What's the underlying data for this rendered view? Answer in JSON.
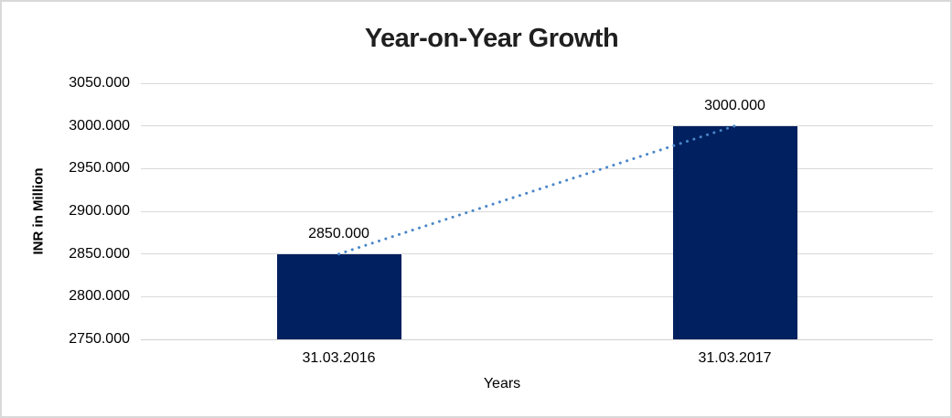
{
  "chart_data": {
    "type": "bar",
    "title": "Year-on-Year Growth",
    "categories": [
      "31.03.2016",
      "31.03.2017"
    ],
    "values": [
      2850,
      3000
    ],
    "value_labels": [
      "2850.000",
      "3000.000"
    ],
    "xlabel": "Years",
    "ylabel": "INR in Million",
    "ylim": [
      2750,
      3050
    ],
    "ytick_step": 50,
    "ytick_labels": [
      "2750.000",
      "2800.000",
      "2850.000",
      "2900.000",
      "2950.000",
      "3000.000",
      "3050.000"
    ],
    "grid": true,
    "legend": "none",
    "trendline": {
      "style": "dotted",
      "color": "#4a86c8",
      "from": {
        "category_index": 0,
        "value": 2850
      },
      "to": {
        "category_index": 1,
        "value": 3000
      }
    },
    "colors": {
      "bar": "#002060",
      "gridline": "#d9d9d9",
      "title_text": "#1f1f1f",
      "label_text": "#000000",
      "frame_border": "#d9d9d9",
      "background": "#ffffff"
    }
  }
}
